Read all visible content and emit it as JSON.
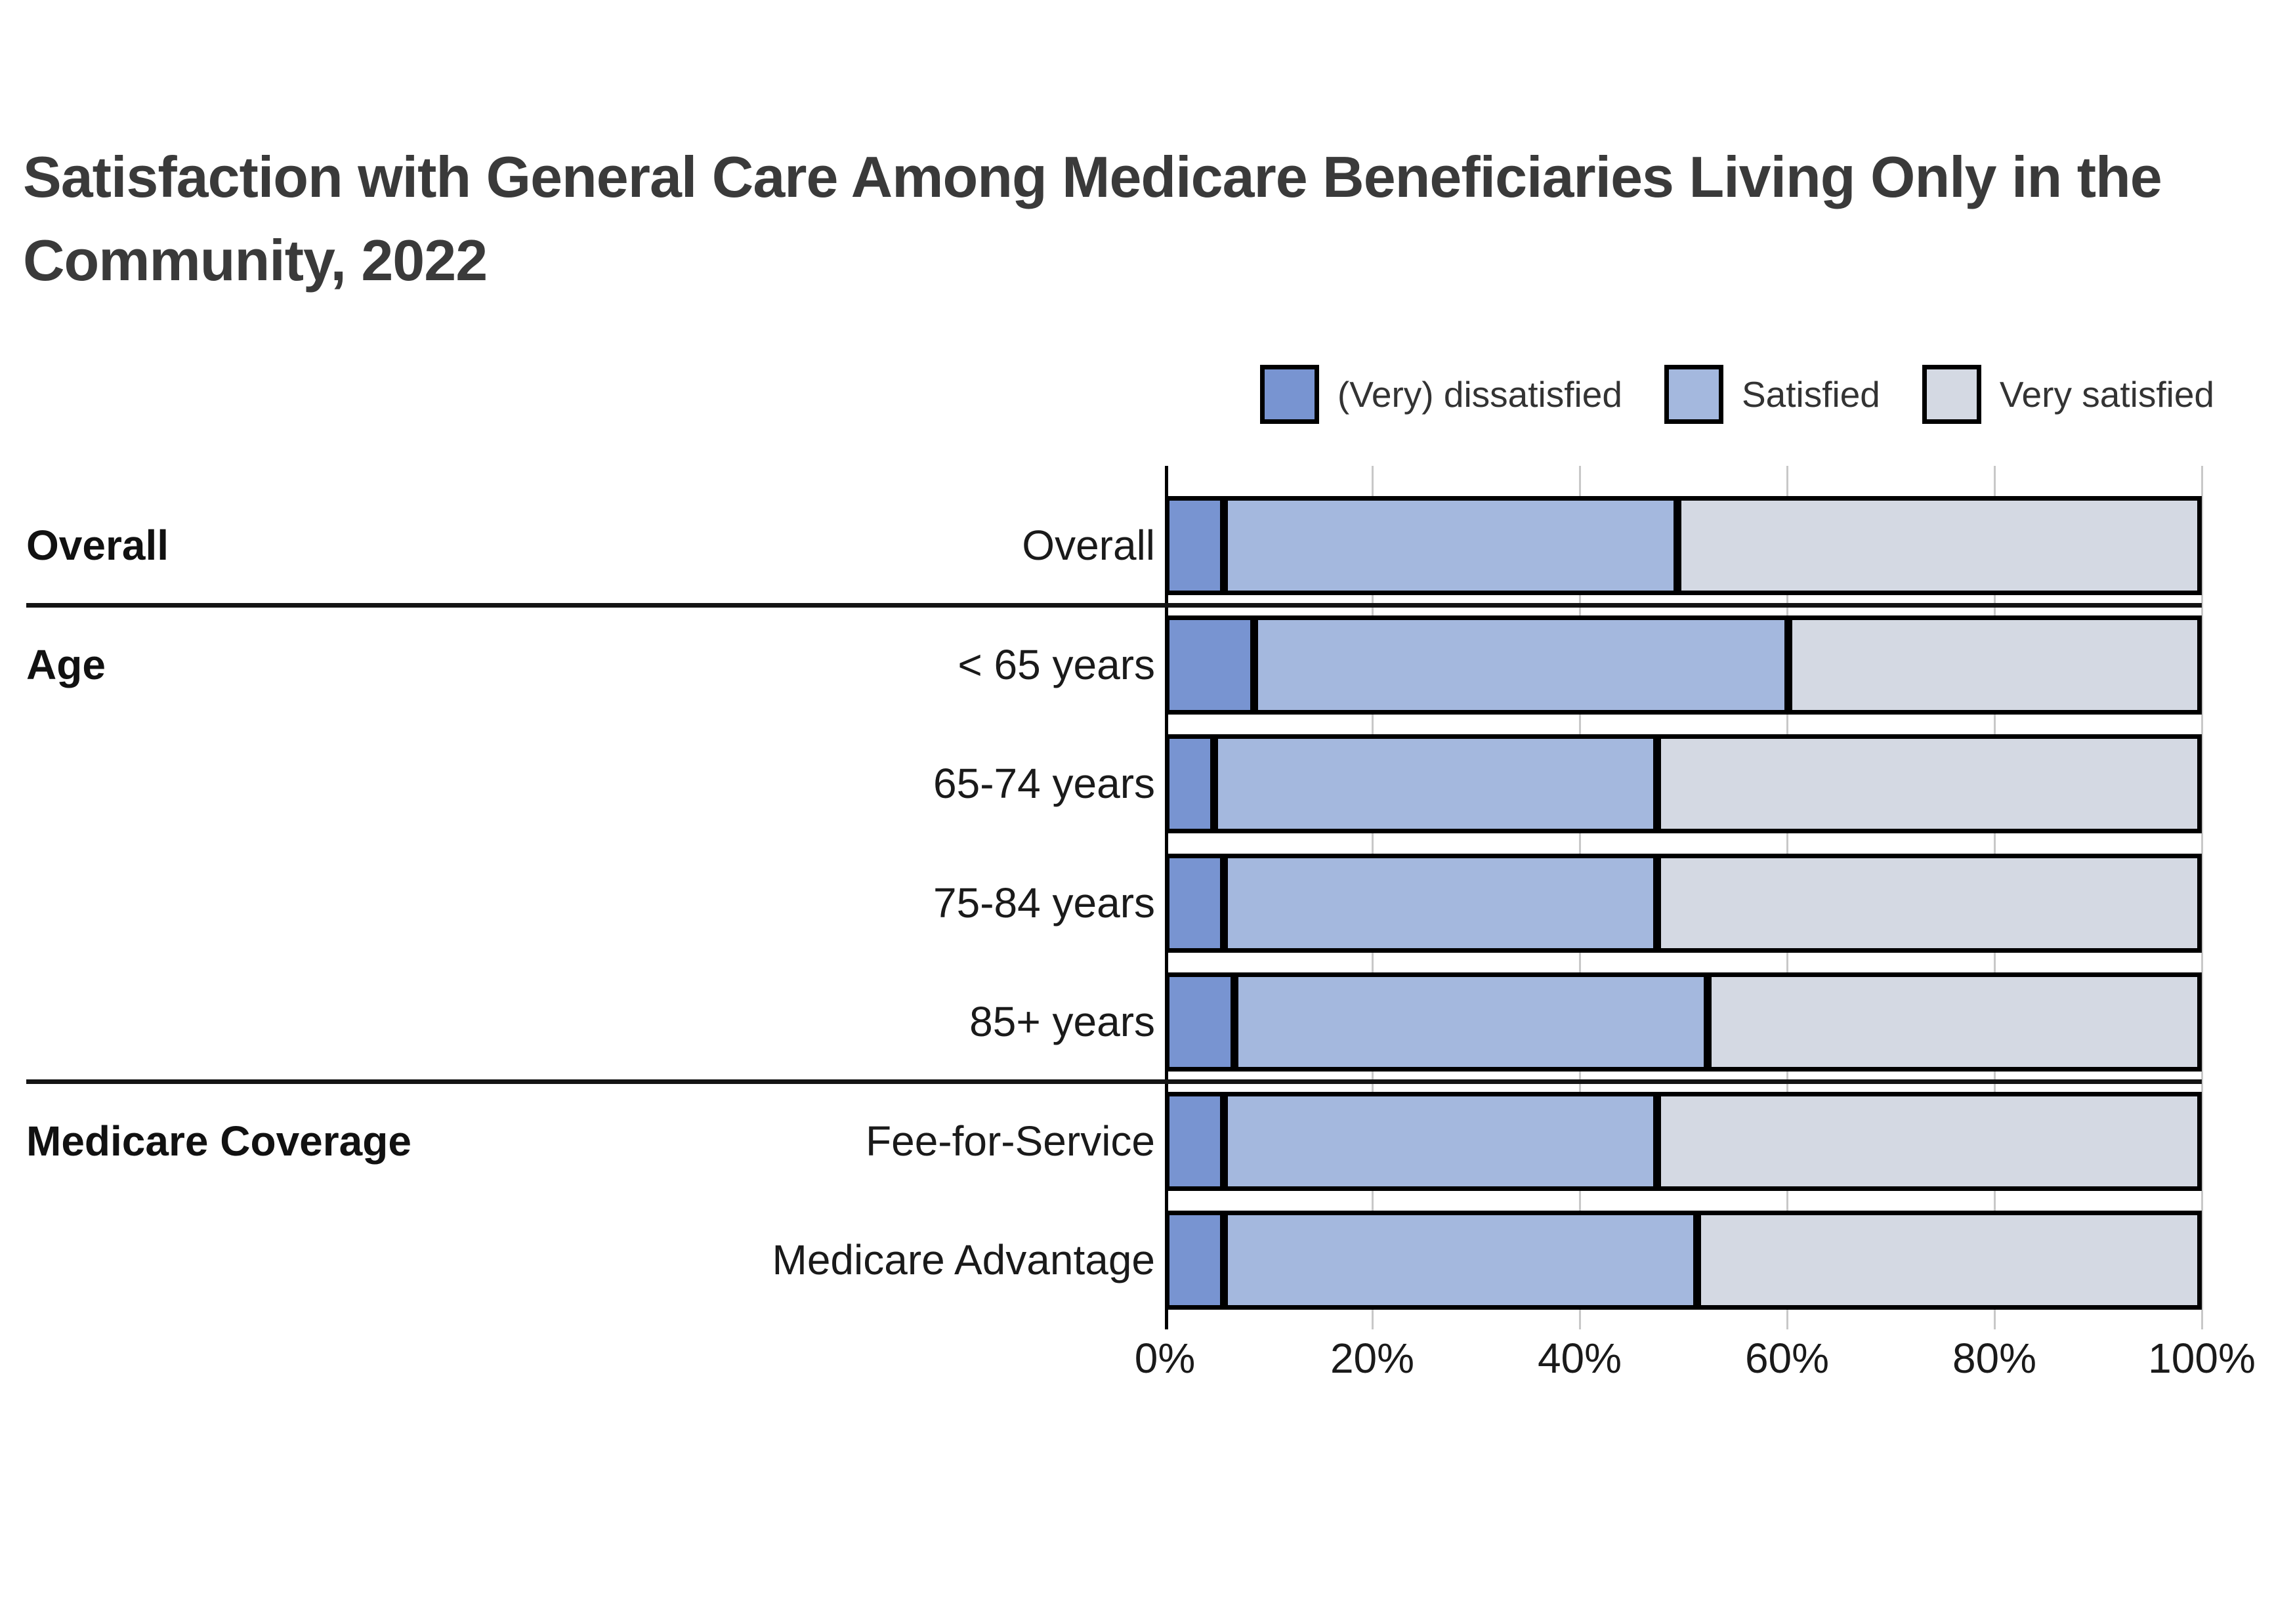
{
  "title": "Satisfaction with General Care Among Medicare Beneficiaries Living Only in the Community, 2022",
  "title_lines": [
    "Satisfaction with General Care Among Medicare Beneficiaries Living Only in the",
    "Community, 2022"
  ],
  "legend": {
    "items": [
      {
        "label": "(Very) dissatisfied",
        "color": "#7894d1"
      },
      {
        "label": "Satisfied",
        "color": "#a4b8de"
      },
      {
        "label": "Very satisfied",
        "color": "#d4d9e3"
      }
    ]
  },
  "colors": {
    "dissatisfied": "#7894d1",
    "satisfied": "#a4b8de",
    "very_satisfied": "#d4d9e3",
    "bar_border": "#000000",
    "gridline": "#c8c8c8",
    "axis_line": "#000000",
    "title_text": "#3a3a3a",
    "label_text": "#1a1a1a"
  },
  "chart_data": {
    "type": "bar",
    "stacked": true,
    "orientation": "horizontal",
    "unit": "percent",
    "xlim": [
      0,
      100
    ],
    "x_ticks": [
      "0%",
      "20%",
      "40%",
      "60%",
      "80%",
      "100%"
    ],
    "grid": "vertical",
    "legend_position": "top-right",
    "series": [
      "(Very) dissatisfied",
      "Satisfied",
      "Very satisfied"
    ],
    "series_colors": [
      "#7894d1",
      "#a4b8de",
      "#d4d9e3"
    ],
    "groups": [
      {
        "label": "Overall",
        "rows": [
          {
            "label": "Overall",
            "values": [
              5,
              44,
              51
            ]
          }
        ]
      },
      {
        "label": "Age",
        "rows": [
          {
            "label": "< 65 years",
            "values": [
              8,
              52,
              40
            ]
          },
          {
            "label": "65-74 years",
            "values": [
              4,
              43,
              53
            ]
          },
          {
            "label": "75-84 years",
            "values": [
              5,
              42,
              53
            ]
          },
          {
            "label": "85+ years",
            "values": [
              6,
              46,
              48
            ]
          }
        ]
      },
      {
        "label": "Medicare Coverage",
        "rows": [
          {
            "label": "Fee-for-Service",
            "values": [
              5,
              42,
              53
            ]
          },
          {
            "label": "Medicare Advantage",
            "values": [
              5,
              46,
              49
            ]
          }
        ]
      }
    ]
  }
}
